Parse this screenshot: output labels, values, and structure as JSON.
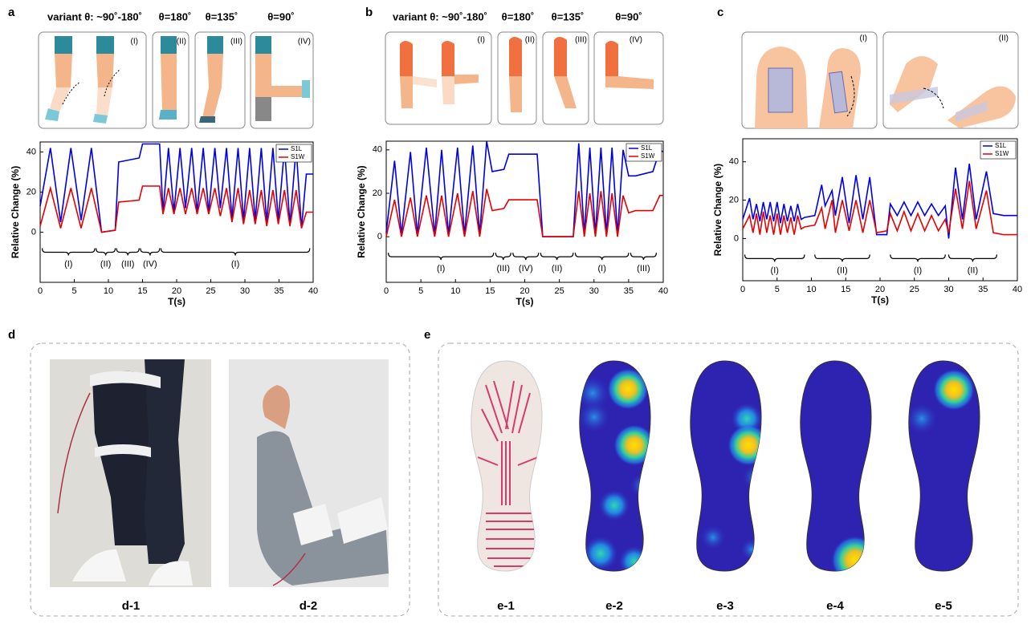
{
  "panel_labels": [
    "a",
    "b",
    "c",
    "d",
    "e"
  ],
  "illustrations": [
    {
      "headers": [
        "variant θ: ~90˚-180˚",
        "θ=180˚",
        "θ=135˚",
        "θ=90˚"
      ],
      "stages": [
        "(I)",
        "(II)",
        "(III)",
        "(IV)"
      ]
    },
    {
      "headers": [
        "variant θ: ~90˚-180˚",
        "θ=180˚",
        "θ=135˚",
        "θ=90˚"
      ],
      "stages": [
        "(I)",
        "(II)",
        "(III)",
        "(IV)"
      ]
    },
    {
      "stages": [
        "(I)",
        "(II)"
      ]
    }
  ],
  "chart_data": [
    {
      "type": "line",
      "xlabel": "T(s)",
      "ylabel": "Relative Change (%)",
      "x": [
        0,
        1.5,
        3,
        4.5,
        6,
        7.5,
        9,
        11,
        11.5,
        14.5,
        15,
        17.5,
        18,
        18.8,
        19.6,
        20.5,
        21.3,
        22.2,
        23,
        23.9,
        24.7,
        25.6,
        26.4,
        27.3,
        28.1,
        29,
        29.8,
        30.7,
        31.5,
        32.4,
        33.2,
        34.1,
        34.9,
        35.8,
        36.6,
        37.5,
        38.3,
        39,
        40
      ],
      "series": [
        {
          "name": "S1L",
          "color": "#0000e6",
          "values": [
            13,
            42,
            5,
            42,
            6,
            42,
            0,
            1,
            35,
            37,
            44,
            44,
            10,
            42,
            10,
            42,
            12,
            42,
            10,
            42,
            10,
            42,
            12,
            42,
            7,
            42,
            6,
            42,
            6,
            42,
            5,
            42,
            6,
            42,
            4,
            42,
            2,
            29,
            29
          ]
        },
        {
          "name": "S1W",
          "color": "#e60000",
          "values": [
            3,
            22,
            2,
            22,
            2,
            22,
            0,
            1,
            15,
            16,
            23,
            23,
            9,
            22,
            9,
            22,
            9,
            22,
            9,
            22,
            9,
            22,
            8,
            22,
            5,
            22,
            4,
            21,
            4,
            21,
            3,
            21,
            4,
            21,
            3,
            21,
            2,
            10,
            10
          ]
        }
      ],
      "xlim": [
        0,
        40
      ],
      "xticks": [
        0,
        5,
        10,
        15,
        20,
        25,
        30,
        35,
        40
      ],
      "ylim": [
        -25,
        45
      ],
      "yticks": [
        0,
        20,
        40
      ],
      "legend": "upper right",
      "annotations": [
        {
          "label": "(I)",
          "x": [
            0.3,
            8
          ]
        },
        {
          "label": "(II)",
          "x": [
            8.2,
            11
          ]
        },
        {
          "label": "(III)",
          "x": [
            11.2,
            14.5
          ]
        },
        {
          "label": "(IV)",
          "x": [
            14.7,
            17.5
          ]
        },
        {
          "label": "(I)",
          "x": [
            17.7,
            39.5
          ]
        }
      ]
    },
    {
      "type": "line",
      "xlabel": "T(s)",
      "ylabel": "Relative Change (%)",
      "x": [
        0,
        1.2,
        2.2,
        3.5,
        4.5,
        5.8,
        7,
        8,
        9,
        10.3,
        11.3,
        12.5,
        13.5,
        14.5,
        15.3,
        17,
        17.7,
        21.8,
        22.6,
        27,
        27.8,
        28.6,
        29.4,
        30.2,
        31,
        31.8,
        32.6,
        33.4,
        34.2,
        35,
        36,
        38.5,
        39.5,
        40
      ],
      "series": [
        {
          "name": "S1L",
          "color": "#0000e6",
          "values": [
            2,
            35,
            1,
            39,
            1,
            41,
            1,
            40,
            1,
            41,
            1,
            42,
            1,
            44,
            30,
            31,
            38,
            38,
            0,
            0,
            43,
            1,
            41,
            1,
            41,
            1,
            41,
            1,
            40,
            28,
            28,
            30,
            40,
            39
          ]
        },
        {
          "name": "S1W",
          "color": "#e60000",
          "values": [
            0,
            17,
            0,
            18,
            0,
            19,
            0,
            19,
            0,
            20,
            0,
            21,
            0,
            22,
            12,
            13,
            17,
            17,
            0,
            0,
            21,
            0,
            20,
            0,
            21,
            0,
            20,
            0,
            19,
            11,
            12,
            12,
            19,
            19
          ]
        }
      ],
      "xlim": [
        0,
        40
      ],
      "xticks": [
        0,
        5,
        10,
        15,
        20,
        25,
        30,
        35,
        40
      ],
      "ylim": [
        -21,
        44
      ],
      "yticks": [
        0,
        20,
        40
      ],
      "legend": "upper right",
      "annotations": [
        {
          "label": "(I)",
          "x": [
            0.3,
            15.5
          ]
        },
        {
          "label": "(III)",
          "x": [
            15.8,
            18
          ]
        },
        {
          "label": "(IV)",
          "x": [
            18.3,
            22
          ]
        },
        {
          "label": "(II)",
          "x": [
            22.3,
            27
          ]
        },
        {
          "label": "(I)",
          "x": [
            27.3,
            35
          ]
        },
        {
          "label": "(III)",
          "x": [
            35.3,
            39
          ]
        }
      ]
    },
    {
      "type": "line",
      "xlabel": "T(s)",
      "ylabel": "Relative Change (%)",
      "x": [
        0,
        1,
        1.5,
        2,
        2.5,
        3,
        3.5,
        4,
        4.5,
        5,
        5.5,
        6,
        6.5,
        7,
        7.5,
        8,
        8.5,
        9,
        10.5,
        11.5,
        12,
        13,
        13.5,
        14.5,
        15.5,
        16.5,
        17.5,
        18.5,
        19.5,
        21,
        21.5,
        22.5,
        23.5,
        24.5,
        25.5,
        26.5,
        27.5,
        28.5,
        29.5,
        30,
        31,
        32,
        33,
        34,
        35.5,
        36.5,
        38,
        40
      ],
      "series": [
        {
          "name": "S1L",
          "color": "#0000e6",
          "values": [
            10,
            21,
            10,
            18,
            9,
            19,
            10,
            19,
            9,
            19,
            8,
            18,
            9,
            17,
            9,
            18,
            10,
            11,
            12,
            28,
            17,
            25,
            12,
            32,
            8,
            33,
            10,
            32,
            2,
            2,
            18,
            12,
            19,
            12,
            19,
            12,
            18,
            12,
            17,
            0,
            37,
            10,
            39,
            10,
            35,
            13,
            12,
            12
          ]
        },
        {
          "name": "S1W",
          "color": "#e60000",
          "values": [
            5,
            12,
            3,
            13,
            2,
            14,
            3,
            12,
            2,
            13,
            2,
            12,
            3,
            11,
            2,
            12,
            5,
            6,
            7,
            16,
            5,
            20,
            3,
            20,
            4,
            20,
            3,
            20,
            3,
            4,
            13,
            4,
            14,
            4,
            13,
            4,
            12,
            4,
            10,
            3,
            26,
            5,
            30,
            5,
            25,
            3,
            2,
            2
          ]
        }
      ],
      "xlim": [
        0,
        40
      ],
      "xticks": [
        0,
        5,
        10,
        15,
        20,
        25,
        30,
        35,
        40
      ],
      "ylim": [
        -22,
        52
      ],
      "yticks": [
        0,
        20,
        40
      ],
      "legend": "upper right",
      "annotations": [
        {
          "label": "(I)",
          "x": [
            0.3,
            9
          ]
        },
        {
          "label": "(II)",
          "x": [
            10.5,
            18.5
          ]
        },
        {
          "label": "(I)",
          "x": [
            21.5,
            29.5
          ]
        },
        {
          "label": "(II)",
          "x": [
            30,
            37
          ]
        }
      ]
    }
  ],
  "photos": {
    "d": [
      "d-1",
      "d-2"
    ],
    "e": [
      "e-1",
      "e-2",
      "e-3",
      "e-4",
      "e-5"
    ]
  }
}
